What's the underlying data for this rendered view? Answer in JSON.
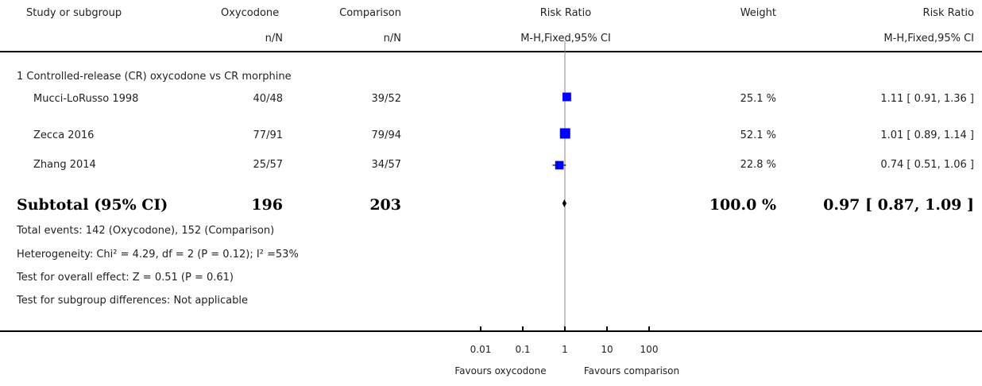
{
  "header": {
    "study": "Study or subgroup",
    "group1": "Oxycodone",
    "group1_sub": "n/N",
    "group2": "Comparison",
    "group2_sub": "n/N",
    "effect": "Risk Ratio",
    "effect_sub": "M-H,Fixed,95% CI",
    "weight": "Weight",
    "effect2": "Risk Ratio",
    "effect2_sub": "M-H,Fixed,95% CI"
  },
  "subgroup": {
    "title": "1 Controlled-release (CR) oxycodone vs CR morphine",
    "subtotal": {
      "label": "Subtotal (95% CI)",
      "n1": "196",
      "n2": "203",
      "weight": "100.0 %",
      "ci_text": "0.97 [ 0.87, 1.09 ]"
    },
    "notes": [
      "Total events: 142 (Oxycodone), 152 (Comparison)",
      "Heterogeneity: Chi² = 4.29, df = 2 (P = 0.12); I² =53%",
      "Test for overall effect: Z = 0.51 (P = 0.61)",
      "Test for subgroup differences: Not applicable"
    ]
  },
  "studies": [
    {
      "name": "Mucci-LoRusso 1998",
      "e1": "40/48",
      "e2": "39/52",
      "weight": "25.1 %",
      "ci_text": "1.11 [ 0.91, 1.36 ]"
    },
    {
      "name": "Zecca 2016",
      "e1": "77/91",
      "e2": "79/94",
      "weight": "52.1 %",
      "ci_text": "1.01 [ 0.89, 1.14 ]"
    },
    {
      "name": "Zhang 2014",
      "e1": "25/57",
      "e2": "34/57",
      "weight": "22.8 %",
      "ci_text": "0.74 [ 0.51, 1.06 ]"
    }
  ],
  "axis": {
    "ticks": [
      "0.01",
      "0.1",
      "1",
      "10",
      "100"
    ],
    "left_label": "Favours oxycodone",
    "right_label": "Favours comparison"
  },
  "chart_data": {
    "type": "forest",
    "scale": "log",
    "xlim": [
      0.01,
      100
    ],
    "tick_values": [
      0.01,
      0.1,
      1,
      10,
      100
    ],
    "studies": [
      {
        "name": "Mucci-LoRusso 1998",
        "rr": 1.11,
        "lo": 0.91,
        "hi": 1.36,
        "weight": 25.1
      },
      {
        "name": "Zecca 2016",
        "rr": 1.01,
        "lo": 0.89,
        "hi": 1.14,
        "weight": 52.1
      },
      {
        "name": "Zhang 2014",
        "rr": 0.74,
        "lo": 0.51,
        "hi": 1.06,
        "weight": 22.8
      }
    ],
    "pooled": {
      "rr": 0.97,
      "lo": 0.87,
      "hi": 1.09,
      "weight": 100.0
    },
    "colors": {
      "box": "#0000ff",
      "line": "#000000",
      "diamond": "#000000"
    }
  }
}
